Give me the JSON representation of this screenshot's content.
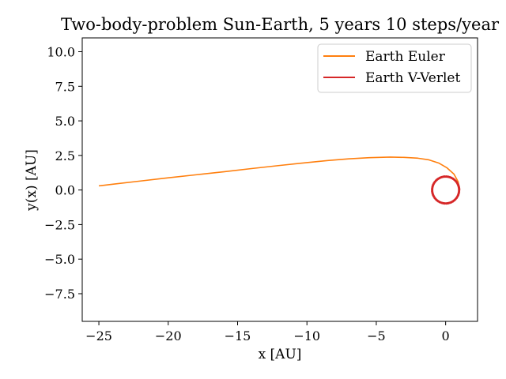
{
  "chart_data": {
    "type": "line",
    "title": "Two-body-problem Sun-Earth, 5 years 10 steps/year",
    "xlabel": "x [AU]",
    "ylabel": "y(x) [AU]",
    "xlim": [
      -26.2,
      2.3
    ],
    "ylim": [
      -9.5,
      11.0
    ],
    "xticks": [
      -25,
      -20,
      -15,
      -10,
      -5,
      0
    ],
    "xtick_labels": [
      "−25",
      "−20",
      "−15",
      "−10",
      "−5",
      "0"
    ],
    "yticks": [
      -7.5,
      -5.0,
      -2.5,
      0.0,
      2.5,
      5.0,
      7.5,
      10.0
    ],
    "ytick_labels": [
      "−7.5",
      "−5.0",
      "−2.5",
      "0.0",
      "2.5",
      "5.0",
      "7.5",
      "10.0"
    ],
    "grid": false,
    "legend_position": "top-right",
    "series": [
      {
        "name": "Earth Euler",
        "color": "#ff7f0e",
        "points": [
          [
            1.0,
            0.0
          ],
          [
            0.9,
            0.6
          ],
          [
            0.6,
            1.15
          ],
          [
            0.1,
            1.6
          ],
          [
            -0.5,
            1.95
          ],
          [
            -1.2,
            2.18
          ],
          [
            -2.0,
            2.3
          ],
          [
            -3.0,
            2.36
          ],
          [
            -4.0,
            2.38
          ],
          [
            -5.5,
            2.34
          ],
          [
            -7.0,
            2.25
          ],
          [
            -8.5,
            2.13
          ],
          [
            -10.0,
            1.98
          ],
          [
            -12.0,
            1.77
          ],
          [
            -14.0,
            1.55
          ],
          [
            -16.0,
            1.32
          ],
          [
            -18.0,
            1.1
          ],
          [
            -20.0,
            0.88
          ],
          [
            -22.0,
            0.65
          ],
          [
            -24.0,
            0.42
          ],
          [
            -25.0,
            0.3
          ]
        ]
      },
      {
        "name": "Earth V-Verlet",
        "color": "#d62728",
        "orbit_radius": 1.0,
        "steps_per_orbit": 10,
        "orbits": 5,
        "phase_jitter_deg": 7
      }
    ]
  }
}
